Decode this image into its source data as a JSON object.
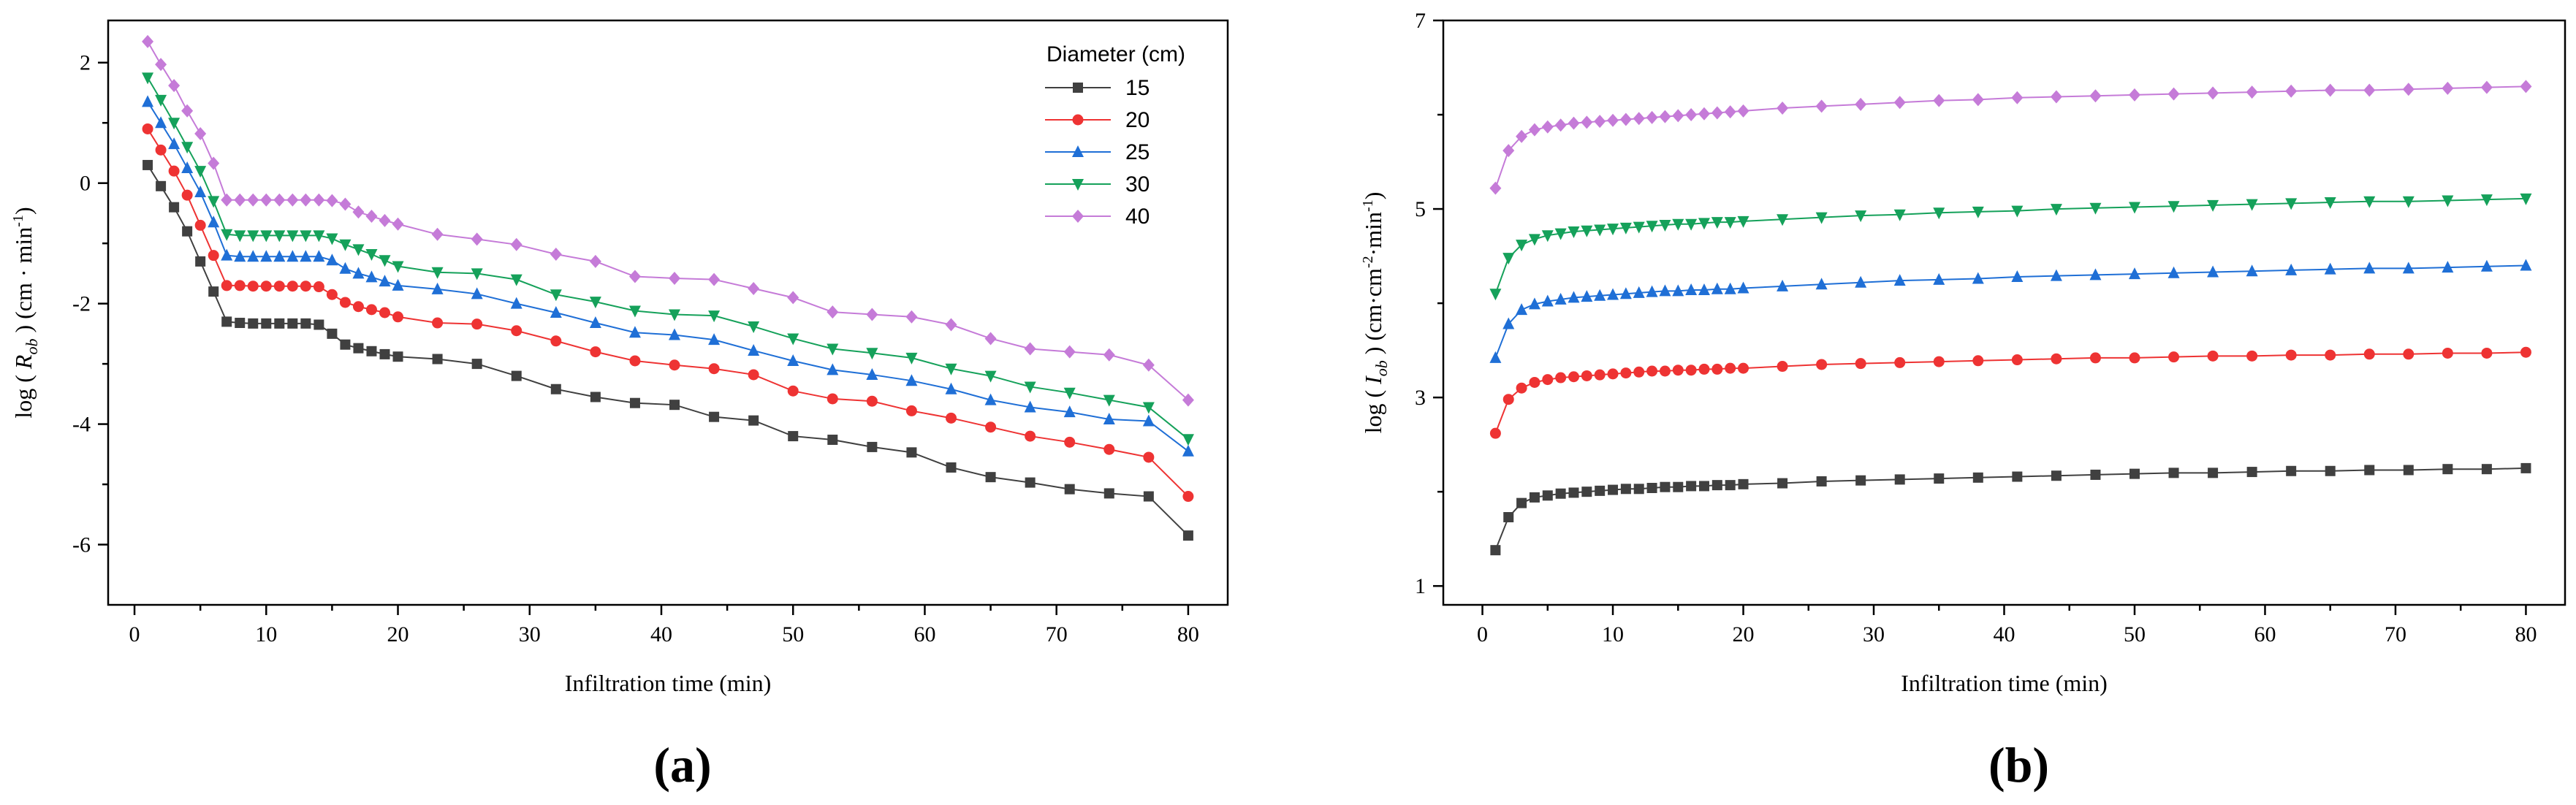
{
  "chart_data": [
    {
      "type": "line",
      "panel_label": "(a)",
      "xlabel": "Infiltration time (min)",
      "ylabel": "log ( R_ob ) (cm·min⁻¹)",
      "ylabel_parts": {
        "prefix": "log ( ",
        "var": "R",
        "sub": "ob",
        "suffix": " ) (cm · min",
        "sup": "-1",
        "close": ")"
      },
      "xlim": [
        -2,
        83
      ],
      "ylim": [
        -7,
        2.7
      ],
      "xticks": [
        0,
        10,
        20,
        30,
        40,
        50,
        60,
        70,
        80
      ],
      "yticks": [
        -6,
        -4,
        -2,
        0,
        2
      ],
      "legend_title": "Diameter (cm)",
      "x": [
        1,
        2,
        3,
        4,
        5,
        6,
        7,
        8,
        9,
        10,
        11,
        12,
        13,
        14,
        15,
        16,
        17,
        18,
        19,
        20,
        23,
        26,
        29,
        32,
        35,
        38,
        41,
        44,
        47,
        50,
        53,
        56,
        59,
        62,
        65,
        68,
        71,
        74,
        77,
        80
      ],
      "series": [
        {
          "name": "15",
          "color": "#404040",
          "marker": "square",
          "values": [
            0.3,
            -0.05,
            -0.4,
            -0.8,
            -1.3,
            -1.8,
            -2.3,
            -2.32,
            -2.33,
            -2.33,
            -2.33,
            -2.33,
            -2.33,
            -2.35,
            -2.5,
            -2.68,
            -2.74,
            -2.79,
            -2.84,
            -2.88,
            -2.92,
            -3.0,
            -3.2,
            -3.42,
            -3.55,
            -3.65,
            -3.68,
            -3.88,
            -3.94,
            -4.2,
            -4.26,
            -4.38,
            -4.47,
            -4.72,
            -4.88,
            -4.97,
            -5.08,
            -5.15,
            -5.2,
            -5.85
          ]
        },
        {
          "name": "20",
          "color": "#ee3333",
          "marker": "circle",
          "values": [
            0.9,
            0.55,
            0.2,
            -0.2,
            -0.7,
            -1.2,
            -1.7,
            -1.7,
            -1.71,
            -1.71,
            -1.71,
            -1.71,
            -1.71,
            -1.72,
            -1.85,
            -1.98,
            -2.05,
            -2.1,
            -2.15,
            -2.22,
            -2.32,
            -2.34,
            -2.45,
            -2.62,
            -2.8,
            -2.95,
            -3.02,
            -3.08,
            -3.18,
            -3.45,
            -3.58,
            -3.62,
            -3.78,
            -3.9,
            -4.05,
            -4.2,
            -4.3,
            -4.42,
            -4.55,
            -5.2
          ]
        },
        {
          "name": "25",
          "color": "#1f6fd6",
          "marker": "triangle-up",
          "values": [
            1.35,
            1.0,
            0.65,
            0.25,
            -0.15,
            -0.65,
            -1.2,
            -1.22,
            -1.22,
            -1.22,
            -1.22,
            -1.22,
            -1.22,
            -1.22,
            -1.28,
            -1.42,
            -1.5,
            -1.56,
            -1.63,
            -1.7,
            -1.76,
            -1.84,
            -2.0,
            -2.15,
            -2.32,
            -2.48,
            -2.52,
            -2.6,
            -2.78,
            -2.95,
            -3.1,
            -3.18,
            -3.28,
            -3.42,
            -3.6,
            -3.72,
            -3.8,
            -3.92,
            -3.95,
            -4.45
          ]
        },
        {
          "name": "30",
          "color": "#15a15a",
          "marker": "triangle-down",
          "values": [
            1.75,
            1.38,
            1.0,
            0.6,
            0.2,
            -0.3,
            -0.85,
            -0.87,
            -0.87,
            -0.87,
            -0.87,
            -0.87,
            -0.87,
            -0.87,
            -0.92,
            -1.02,
            -1.1,
            -1.18,
            -1.28,
            -1.38,
            -1.48,
            -1.5,
            -1.6,
            -1.85,
            -1.97,
            -2.12,
            -2.18,
            -2.2,
            -2.38,
            -2.58,
            -2.75,
            -2.82,
            -2.9,
            -3.08,
            -3.2,
            -3.38,
            -3.48,
            -3.6,
            -3.72,
            -4.25
          ]
        },
        {
          "name": "40",
          "color": "#c57bd8",
          "marker": "diamond",
          "values": [
            2.35,
            1.97,
            1.62,
            1.2,
            0.82,
            0.33,
            -0.28,
            -0.28,
            -0.28,
            -0.28,
            -0.28,
            -0.28,
            -0.28,
            -0.28,
            -0.29,
            -0.35,
            -0.48,
            -0.55,
            -0.62,
            -0.68,
            -0.85,
            -0.93,
            -1.02,
            -1.18,
            -1.3,
            -1.55,
            -1.58,
            -1.6,
            -1.75,
            -1.9,
            -2.14,
            -2.18,
            -2.22,
            -2.35,
            -2.58,
            -2.75,
            -2.8,
            -2.85,
            -3.02,
            -3.6
          ]
        }
      ]
    },
    {
      "type": "line",
      "panel_label": "(b)",
      "xlabel": "Infiltration time (min)",
      "ylabel": "log ( I_ob ) (cm·cm⁻²·min⁻¹)",
      "ylabel_parts": {
        "prefix": "log ( ",
        "var": "I",
        "sub": "ob",
        "suffix": " ) (cm·cm",
        "sup": "-2",
        "mid": "·min",
        "sup2": "-1",
        "close": ")"
      },
      "xlim": [
        -3,
        83
      ],
      "ylim": [
        0.8,
        7.0
      ],
      "xticks": [
        0,
        10,
        20,
        30,
        40,
        50,
        60,
        70,
        80
      ],
      "yticks": [
        1,
        3,
        5,
        7
      ],
      "x": [
        1,
        2,
        3,
        4,
        5,
        6,
        7,
        8,
        9,
        10,
        11,
        12,
        13,
        14,
        15,
        16,
        17,
        18,
        19,
        20,
        23,
        26,
        29,
        32,
        35,
        38,
        41,
        44,
        47,
        50,
        53,
        56,
        59,
        62,
        65,
        68,
        71,
        74,
        77,
        80
      ],
      "series": [
        {
          "name": "15",
          "color": "#404040",
          "marker": "square",
          "values": [
            1.38,
            1.73,
            1.88,
            1.94,
            1.96,
            1.98,
            1.99,
            2.0,
            2.01,
            2.02,
            2.03,
            2.03,
            2.04,
            2.05,
            2.05,
            2.06,
            2.06,
            2.07,
            2.07,
            2.08,
            2.09,
            2.11,
            2.12,
            2.13,
            2.14,
            2.15,
            2.16,
            2.17,
            2.18,
            2.19,
            2.2,
            2.2,
            2.21,
            2.22,
            2.22,
            2.23,
            2.23,
            2.24,
            2.24,
            2.25
          ]
        },
        {
          "name": "20",
          "color": "#ee3333",
          "marker": "circle",
          "values": [
            2.62,
            2.98,
            3.1,
            3.16,
            3.19,
            3.21,
            3.22,
            3.23,
            3.24,
            3.25,
            3.26,
            3.27,
            3.28,
            3.28,
            3.29,
            3.29,
            3.3,
            3.3,
            3.31,
            3.31,
            3.33,
            3.35,
            3.36,
            3.37,
            3.38,
            3.39,
            3.4,
            3.41,
            3.42,
            3.42,
            3.43,
            3.44,
            3.44,
            3.45,
            3.45,
            3.46,
            3.46,
            3.47,
            3.47,
            3.48
          ]
        },
        {
          "name": "25",
          "color": "#1f6fd6",
          "marker": "triangle-up",
          "values": [
            3.42,
            3.78,
            3.93,
            3.99,
            4.02,
            4.04,
            4.06,
            4.07,
            4.08,
            4.09,
            4.1,
            4.11,
            4.12,
            4.13,
            4.13,
            4.14,
            4.14,
            4.15,
            4.15,
            4.16,
            4.18,
            4.2,
            4.22,
            4.24,
            4.25,
            4.26,
            4.28,
            4.29,
            4.3,
            4.31,
            4.32,
            4.33,
            4.34,
            4.35,
            4.36,
            4.37,
            4.37,
            4.38,
            4.39,
            4.4
          ]
        },
        {
          "name": "30",
          "color": "#15a15a",
          "marker": "triangle-down",
          "values": [
            4.1,
            4.48,
            4.62,
            4.68,
            4.72,
            4.74,
            4.76,
            4.77,
            4.78,
            4.79,
            4.8,
            4.81,
            4.82,
            4.83,
            4.84,
            4.84,
            4.85,
            4.86,
            4.86,
            4.87,
            4.89,
            4.91,
            4.93,
            4.94,
            4.96,
            4.97,
            4.98,
            5.0,
            5.01,
            5.02,
            5.03,
            5.04,
            5.05,
            5.06,
            5.07,
            5.08,
            5.08,
            5.09,
            5.1,
            5.11
          ]
        },
        {
          "name": "40",
          "color": "#c57bd8",
          "marker": "diamond",
          "values": [
            5.22,
            5.62,
            5.77,
            5.84,
            5.87,
            5.89,
            5.91,
            5.92,
            5.93,
            5.94,
            5.95,
            5.96,
            5.97,
            5.98,
            5.99,
            6.0,
            6.01,
            6.02,
            6.03,
            6.04,
            6.07,
            6.09,
            6.11,
            6.13,
            6.15,
            6.16,
            6.18,
            6.19,
            6.2,
            6.21,
            6.22,
            6.23,
            6.24,
            6.25,
            6.26,
            6.26,
            6.27,
            6.28,
            6.29,
            6.3
          ]
        }
      ]
    }
  ]
}
